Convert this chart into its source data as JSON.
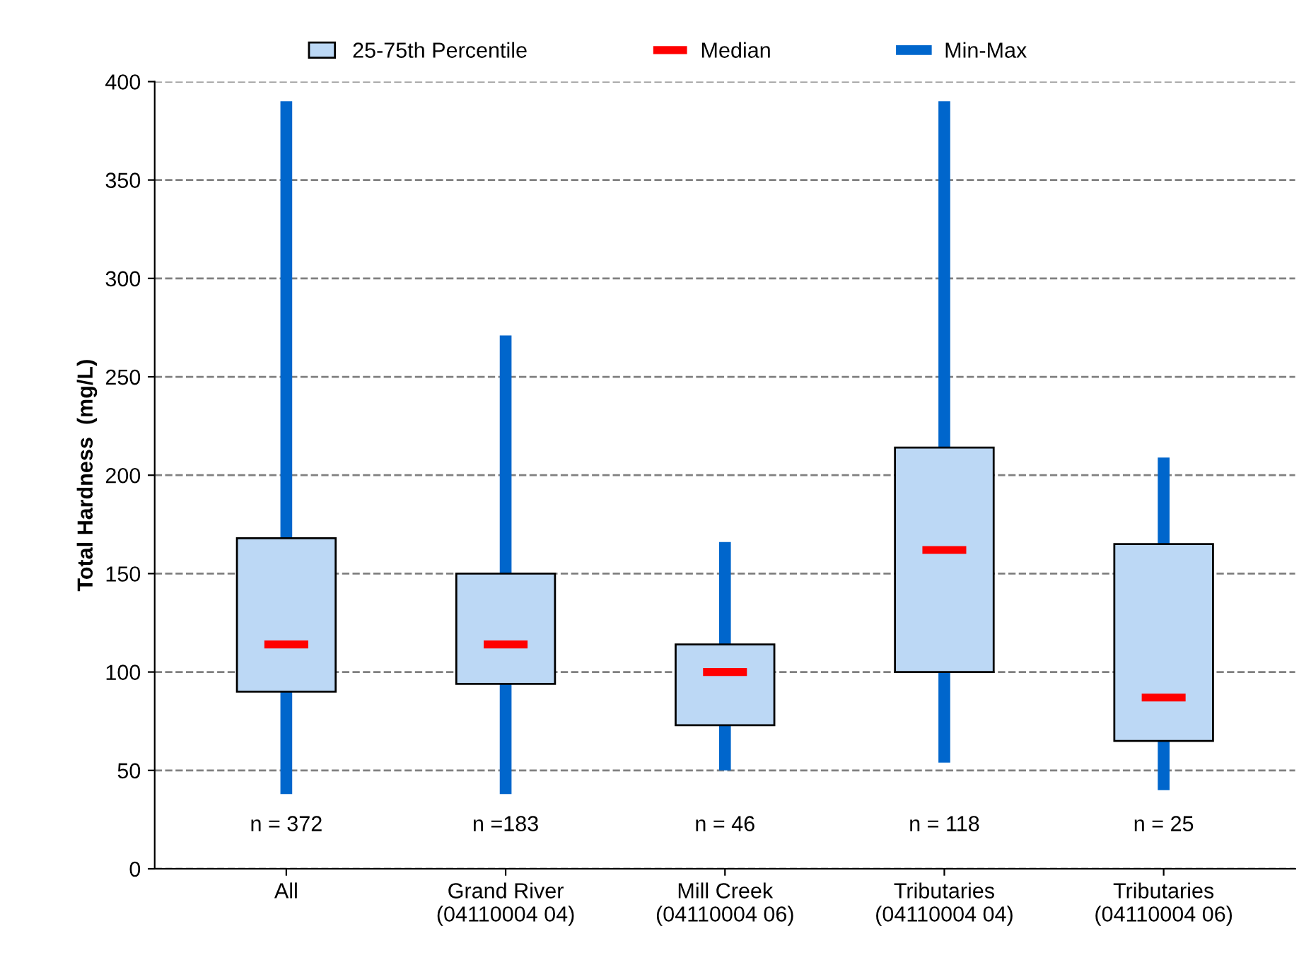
{
  "chart_data": {
    "type": "box",
    "ylabel": "Total Hardness  (mg/L)",
    "categories": [
      "All",
      "Grand River\n(04110004 04)",
      "Mill Creek\n(04110004 06)",
      "Tributaries\n(04110004 04)",
      "Tributaries\n(04110004 06)"
    ],
    "series": [
      {
        "name": "25-75th Percentile",
        "color": "#bcd8f5",
        "boxes": [
          {
            "low": 38,
            "q1": 90,
            "median": 114,
            "q3": 168,
            "high": 390
          },
          {
            "low": 38,
            "q1": 94,
            "median": 114,
            "q3": 150,
            "high": 271
          },
          {
            "low": 50,
            "q1": 73,
            "median": 100,
            "q3": 114,
            "high": 166
          },
          {
            "low": 54,
            "q1": 100,
            "median": 162,
            "q3": 214,
            "high": 390
          },
          {
            "low": 40,
            "q1": 65,
            "median": 87,
            "q3": 165,
            "high": 209
          }
        ]
      }
    ],
    "annotations": [
      "n = 372",
      "n =183",
      "n = 46",
      "n = 118",
      "n = 25",
      "Median",
      "Min-Max"
    ],
    "ylim": [
      0,
      400
    ],
    "yticks": [
      0,
      50,
      100,
      150,
      200,
      250,
      300,
      350,
      400
    ],
    "grid": "y",
    "legend": "top"
  }
}
